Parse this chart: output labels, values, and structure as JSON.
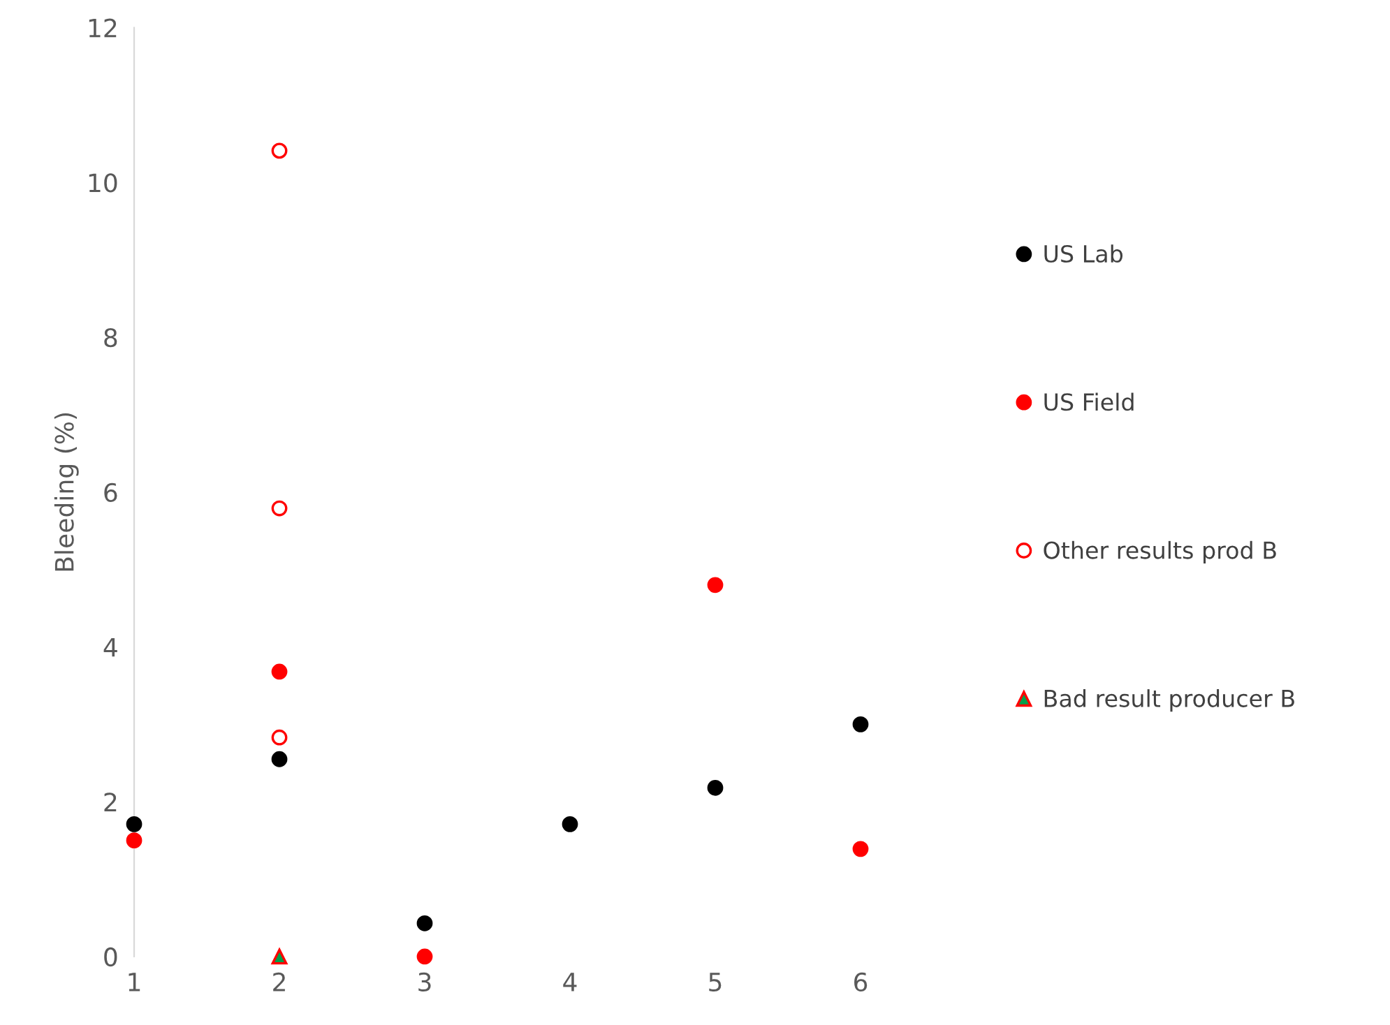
{
  "chart_data": {
    "type": "scatter",
    "ylabel": "Bleeding (%)",
    "xlim": [
      1,
      6
    ],
    "xticks": [
      1,
      2,
      3,
      4,
      5,
      6
    ],
    "ylim": [
      0,
      12
    ],
    "yticks": [
      0,
      2,
      4,
      6,
      8,
      10,
      12
    ],
    "grid": false,
    "legend": "right",
    "marker": "circle",
    "series": [
      {
        "name": "US Lab",
        "color": "#000000",
        "x": [
          1,
          2,
          3,
          4,
          5,
          6
        ],
        "values": [
          1.71,
          2.55,
          0.43,
          1.71,
          2.18,
          3.0
        ]
      },
      {
        "name": "US Field",
        "color": "#ff0000",
        "x": [
          1,
          2,
          3,
          5,
          6
        ],
        "values": [
          1.5,
          3.68,
          0,
          4.8,
          1.39
        ]
      },
      {
        "name": "Other results prod B",
        "color": "#ff0000",
        "x": [
          2,
          2,
          2
        ],
        "values": [
          10.41,
          5.79,
          2.83
        ]
      },
      {
        "name": "Bad result producer B",
        "color": "#00a04b",
        "marker": "triangle",
        "x": [
          2
        ],
        "values": [
          0
        ]
      }
    ]
  }
}
